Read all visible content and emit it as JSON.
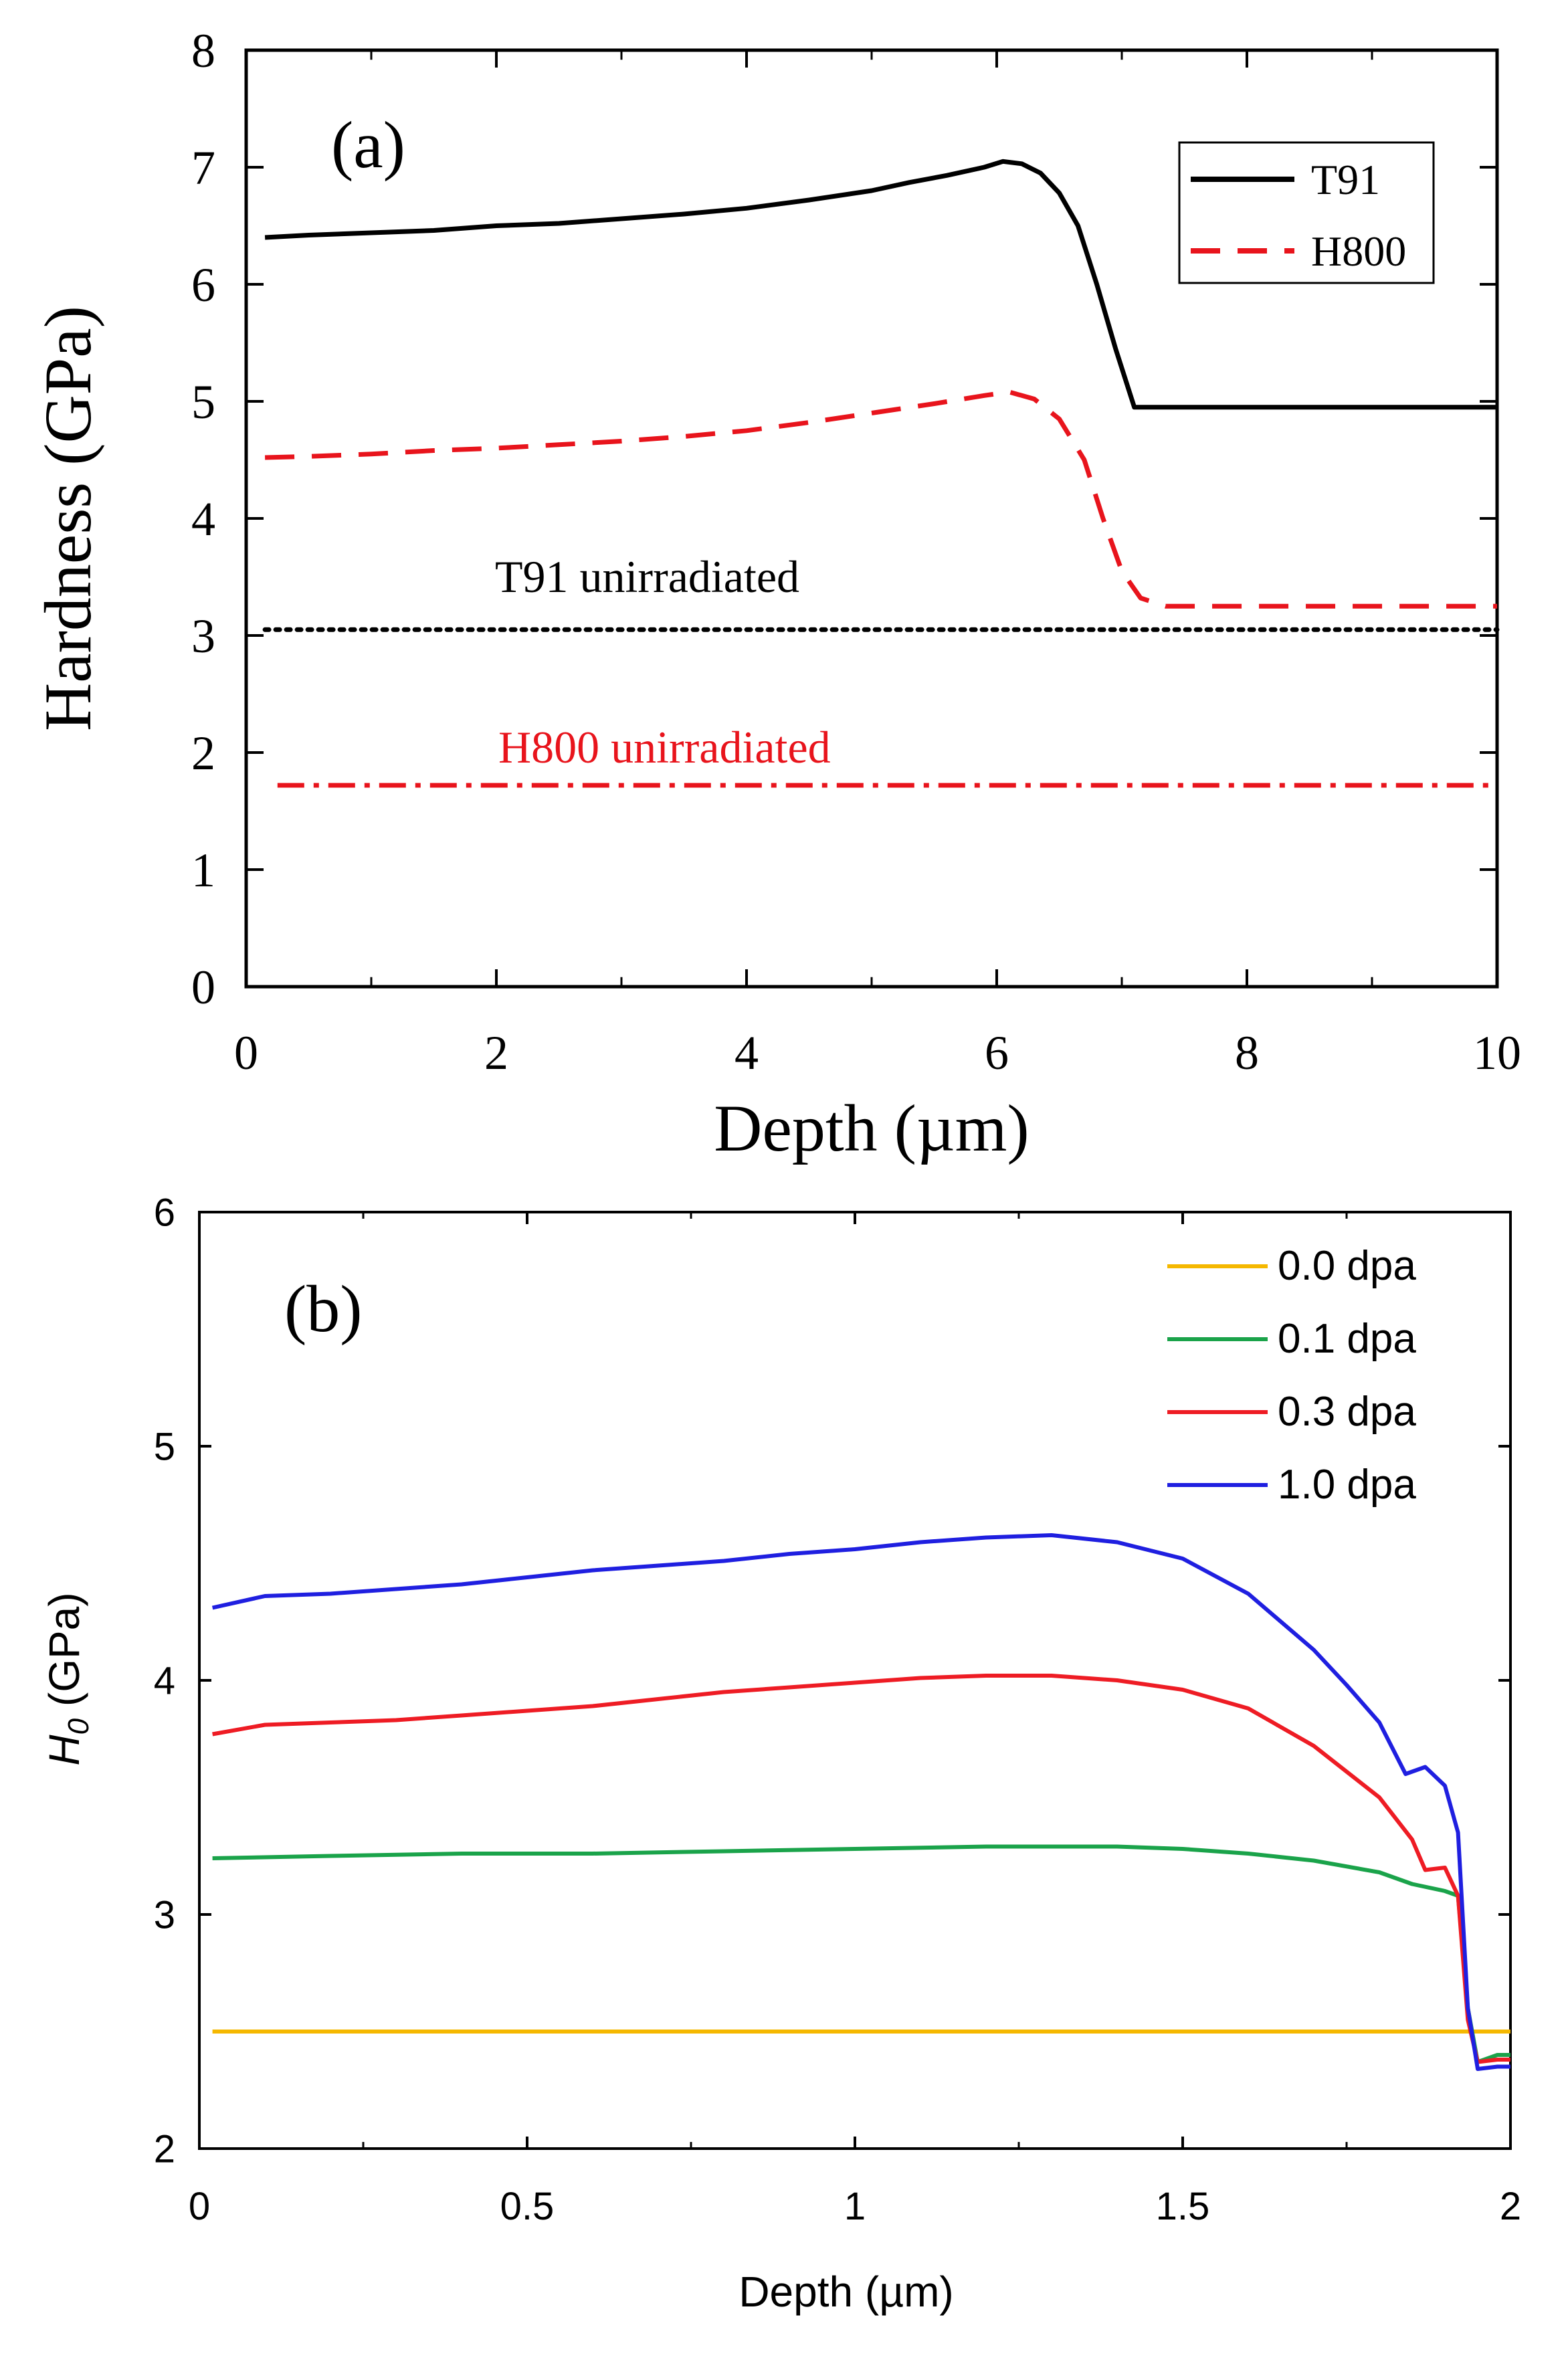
{
  "chart_data": [
    {
      "type": "line",
      "panel_label": "(a)",
      "xlabel": "Depth (µm)",
      "ylabel": "Hardness (GPa)",
      "xlim": [
        0,
        10
      ],
      "ylim": [
        0,
        8
      ],
      "xticks": [
        "0",
        "2",
        "4",
        "6",
        "8",
        "10"
      ],
      "yticks": [
        "0",
        "1",
        "2",
        "3",
        "4",
        "5",
        "6",
        "7",
        "8"
      ],
      "grid": false,
      "legend_position": "top-right",
      "series": [
        {
          "name": "T91",
          "color": "#000000",
          "style": "solid",
          "x": [
            0.15,
            0.5,
            1.0,
            1.5,
            2.0,
            2.5,
            3.0,
            3.5,
            4.0,
            4.5,
            5.0,
            5.3,
            5.6,
            5.9,
            6.05,
            6.2,
            6.35,
            6.5,
            6.65,
            6.8,
            6.95,
            7.1,
            7.5,
            8.0,
            9.0,
            10.0
          ],
          "y": [
            6.4,
            6.42,
            6.44,
            6.46,
            6.5,
            6.52,
            6.56,
            6.6,
            6.65,
            6.72,
            6.8,
            6.87,
            6.93,
            7.0,
            7.05,
            7.03,
            6.95,
            6.78,
            6.5,
            6.0,
            5.45,
            4.95,
            4.95,
            4.95,
            4.95,
            4.95
          ]
        },
        {
          "name": "H800",
          "color": "#e8141c",
          "style": "dashed",
          "x": [
            0.15,
            0.5,
            1.0,
            1.5,
            2.0,
            2.5,
            3.0,
            3.5,
            4.0,
            4.5,
            5.0,
            5.5,
            5.9,
            6.1,
            6.3,
            6.5,
            6.7,
            6.85,
            7.0,
            7.15,
            7.35,
            8.0,
            9.0,
            10.0
          ],
          "y": [
            4.52,
            4.53,
            4.55,
            4.58,
            4.6,
            4.63,
            4.66,
            4.7,
            4.75,
            4.82,
            4.9,
            4.98,
            5.05,
            5.08,
            5.02,
            4.85,
            4.5,
            4.0,
            3.55,
            3.32,
            3.25,
            3.25,
            3.25,
            3.25
          ]
        },
        {
          "name": "T91 unirradiated",
          "color": "#000000",
          "style": "dotted",
          "x": [
            0.15,
            10.0
          ],
          "y": [
            3.05,
            3.05
          ]
        },
        {
          "name": "H800 unirradiated",
          "color": "#e8141c",
          "style": "dashdot",
          "x": [
            0.25,
            10.0
          ],
          "y": [
            1.72,
            1.72
          ]
        }
      ],
      "legend": [
        "T91",
        "H800"
      ],
      "annotations": [
        "T91 unirradiated",
        "H800 unirradiated"
      ]
    },
    {
      "type": "line",
      "panel_label": "(b)",
      "xlabel": "Depth (µm)",
      "ylabel": "H0 (GPa)",
      "xlim": [
        0,
        2
      ],
      "ylim": [
        2,
        6
      ],
      "xticks": [
        "0",
        "0.5",
        "1",
        "1.5",
        "2"
      ],
      "yticks": [
        "2",
        "3",
        "4",
        "5",
        "6"
      ],
      "grid": false,
      "legend_position": "top-right",
      "series": [
        {
          "name": "0.0 dpa",
          "color": "#f5b800",
          "x": [
            0.02,
            2.0
          ],
          "y": [
            2.5,
            2.5
          ]
        },
        {
          "name": "0.1 dpa",
          "color": "#1aa34a",
          "x": [
            0.02,
            0.2,
            0.4,
            0.6,
            0.8,
            1.0,
            1.2,
            1.4,
            1.5,
            1.6,
            1.7,
            1.8,
            1.85,
            1.9,
            1.92,
            1.935,
            1.95,
            1.98,
            2.0
          ],
          "y": [
            3.24,
            3.25,
            3.26,
            3.26,
            3.27,
            3.28,
            3.29,
            3.29,
            3.28,
            3.26,
            3.23,
            3.18,
            3.13,
            3.1,
            3.08,
            2.6,
            2.37,
            2.4,
            2.4
          ]
        },
        {
          "name": "0.3 dpa",
          "color": "#ee1c24",
          "x": [
            0.02,
            0.1,
            0.2,
            0.3,
            0.4,
            0.5,
            0.6,
            0.7,
            0.8,
            0.9,
            1.0,
            1.1,
            1.2,
            1.3,
            1.4,
            1.5,
            1.6,
            1.7,
            1.8,
            1.85,
            1.87,
            1.9,
            1.92,
            1.935,
            1.95,
            1.98,
            2.0
          ],
          "y": [
            3.77,
            3.81,
            3.82,
            3.83,
            3.85,
            3.87,
            3.89,
            3.92,
            3.95,
            3.97,
            3.99,
            4.01,
            4.02,
            4.02,
            4.0,
            3.96,
            3.88,
            3.72,
            3.5,
            3.32,
            3.19,
            3.2,
            3.08,
            2.55,
            2.37,
            2.38,
            2.38
          ]
        },
        {
          "name": "1.0 dpa",
          "color": "#1f1fe0",
          "x": [
            0.02,
            0.1,
            0.2,
            0.3,
            0.4,
            0.5,
            0.6,
            0.7,
            0.8,
            0.9,
            1.0,
            1.1,
            1.2,
            1.3,
            1.4,
            1.5,
            1.6,
            1.7,
            1.75,
            1.8,
            1.84,
            1.87,
            1.9,
            1.92,
            1.935,
            1.95,
            1.98,
            2.0
          ],
          "y": [
            4.31,
            4.36,
            4.37,
            4.39,
            4.41,
            4.44,
            4.47,
            4.49,
            4.51,
            4.54,
            4.56,
            4.59,
            4.61,
            4.62,
            4.59,
            4.52,
            4.37,
            4.13,
            3.98,
            3.82,
            3.6,
            3.63,
            3.55,
            3.35,
            2.6,
            2.34,
            2.35,
            2.35
          ]
        }
      ],
      "legend": [
        "0.0 dpa",
        "0.1 dpa",
        "0.3 dpa",
        "1.0 dpa"
      ]
    }
  ]
}
